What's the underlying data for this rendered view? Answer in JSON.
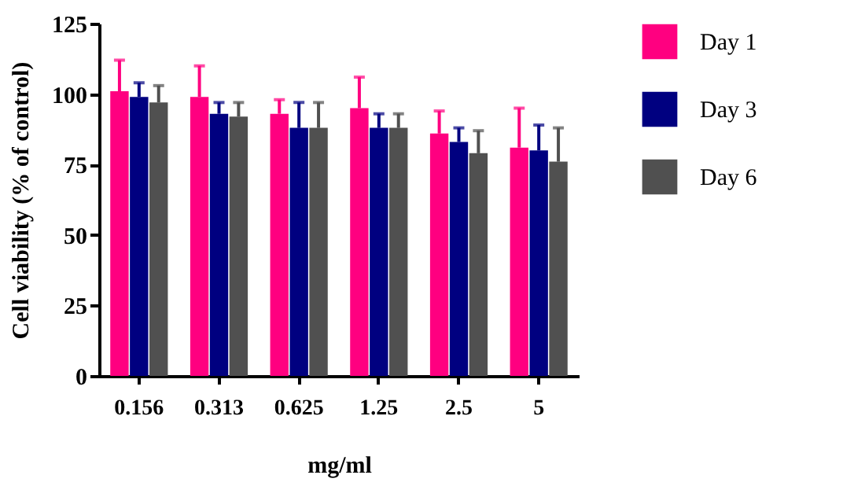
{
  "chart_data": {
    "type": "bar",
    "xlabel": "mg/ml",
    "ylabel": "Cell viability (% of control)",
    "categories": [
      "0.156",
      "0.313",
      "0.625",
      "1.25",
      "2.5",
      "5"
    ],
    "series": [
      {
        "name": "Day 1",
        "color": "#ff0080",
        "values": [
          101,
          99,
          93,
          95,
          86,
          81
        ],
        "errors": [
          [
            101,
            112
          ],
          [
            99,
            110
          ],
          [
            93,
            98
          ],
          [
            95,
            106
          ],
          [
            86,
            94
          ],
          [
            81,
            95
          ]
        ]
      },
      {
        "name": "Day 3",
        "color": "#000080",
        "values": [
          99,
          93,
          88,
          88,
          83,
          80
        ],
        "errors": [
          [
            99,
            104
          ],
          [
            93,
            97
          ],
          [
            88,
            97
          ],
          [
            88,
            93
          ],
          [
            83,
            88
          ],
          [
            80,
            89
          ]
        ]
      },
      {
        "name": "Day 6",
        "color": "#505050",
        "values": [
          97,
          92,
          88,
          88,
          79,
          76
        ],
        "errors": [
          [
            97,
            103
          ],
          [
            92,
            97
          ],
          [
            88,
            97
          ],
          [
            88,
            93
          ],
          [
            79,
            87
          ],
          [
            76,
            88
          ]
        ]
      }
    ],
    "ylim": [
      0,
      125
    ],
    "yticks": [
      0,
      25,
      50,
      75,
      100,
      125
    ],
    "grid": false,
    "legend": "right"
  }
}
